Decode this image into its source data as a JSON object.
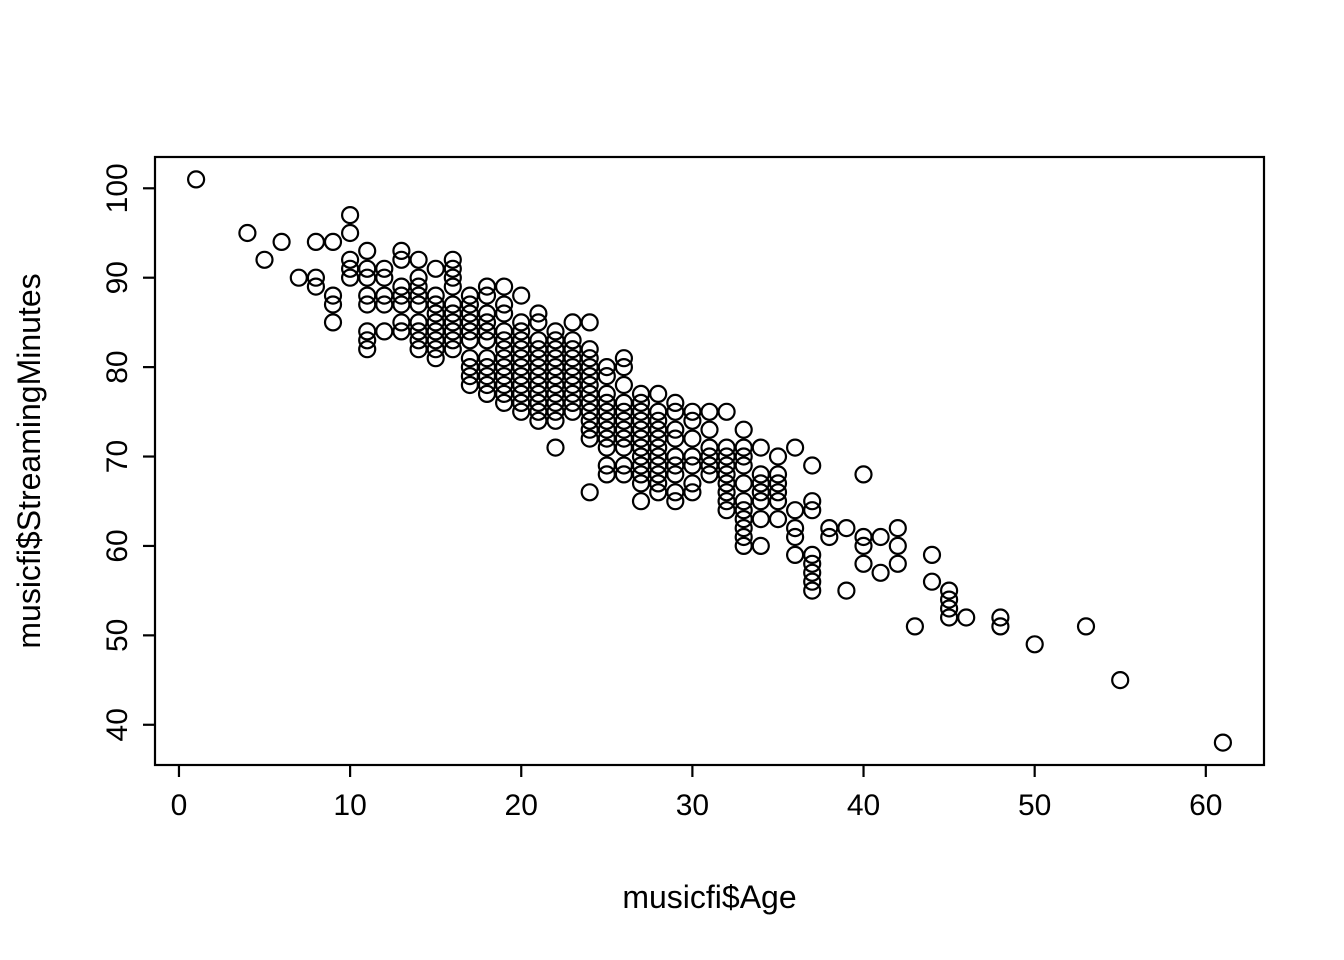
{
  "chart_data": {
    "type": "scatter",
    "title": "",
    "xlabel": "musicfi$Age",
    "ylabel": "musicfi$StreamingMinutes",
    "x_ticks": [
      0,
      10,
      20,
      30,
      40,
      50,
      60
    ],
    "y_ticks": [
      40,
      50,
      60,
      70,
      80,
      90,
      100
    ],
    "xlim": [
      -1.4,
      63.4
    ],
    "ylim": [
      35.5,
      103.5
    ],
    "grid": false,
    "legend": null,
    "marker": "open-circle",
    "marker_color": "#000000",
    "background_color": "#ffffff",
    "points": [
      [
        1,
        101
      ],
      [
        4,
        95
      ],
      [
        5,
        92
      ],
      [
        6,
        94
      ],
      [
        7,
        90
      ],
      [
        8,
        94
      ],
      [
        8,
        90
      ],
      [
        8,
        89
      ],
      [
        9,
        94
      ],
      [
        9,
        88
      ],
      [
        9,
        87
      ],
      [
        9,
        85
      ],
      [
        10,
        97
      ],
      [
        10,
        95
      ],
      [
        10,
        92
      ],
      [
        10,
        91
      ],
      [
        10,
        90
      ],
      [
        11,
        93
      ],
      [
        11,
        91
      ],
      [
        11,
        90
      ],
      [
        11,
        88
      ],
      [
        11,
        87
      ],
      [
        11,
        84
      ],
      [
        11,
        83
      ],
      [
        11,
        82
      ],
      [
        12,
        91
      ],
      [
        12,
        90
      ],
      [
        12,
        88
      ],
      [
        12,
        87
      ],
      [
        12,
        84
      ],
      [
        13,
        93
      ],
      [
        13,
        92
      ],
      [
        13,
        89
      ],
      [
        13,
        88
      ],
      [
        13,
        87
      ],
      [
        13,
        85
      ],
      [
        13,
        84
      ],
      [
        14,
        92
      ],
      [
        14,
        90
      ],
      [
        14,
        89
      ],
      [
        14,
        88
      ],
      [
        14,
        87
      ],
      [
        14,
        85
      ],
      [
        14,
        84
      ],
      [
        14,
        83
      ],
      [
        14,
        82
      ],
      [
        15,
        91
      ],
      [
        15,
        88
      ],
      [
        15,
        87
      ],
      [
        15,
        86
      ],
      [
        15,
        85
      ],
      [
        15,
        84
      ],
      [
        15,
        83
      ],
      [
        15,
        82
      ],
      [
        15,
        81
      ],
      [
        16,
        92
      ],
      [
        16,
        91
      ],
      [
        16,
        90
      ],
      [
        16,
        89
      ],
      [
        16,
        87
      ],
      [
        16,
        86
      ],
      [
        16,
        85
      ],
      [
        16,
        84
      ],
      [
        16,
        83
      ],
      [
        16,
        82
      ],
      [
        17,
        88
      ],
      [
        17,
        87
      ],
      [
        17,
        86
      ],
      [
        17,
        85
      ],
      [
        17,
        84
      ],
      [
        17,
        83
      ],
      [
        17,
        81
      ],
      [
        17,
        80
      ],
      [
        17,
        79
      ],
      [
        17,
        78
      ],
      [
        18,
        89
      ],
      [
        18,
        88
      ],
      [
        18,
        86
      ],
      [
        18,
        85
      ],
      [
        18,
        84
      ],
      [
        18,
        83
      ],
      [
        18,
        81
      ],
      [
        18,
        80
      ],
      [
        18,
        79
      ],
      [
        18,
        78
      ],
      [
        18,
        77
      ],
      [
        19,
        89
      ],
      [
        19,
        87
      ],
      [
        19,
        86
      ],
      [
        19,
        84
      ],
      [
        19,
        83
      ],
      [
        19,
        82
      ],
      [
        19,
        81
      ],
      [
        19,
        80
      ],
      [
        19,
        79
      ],
      [
        19,
        78
      ],
      [
        19,
        77
      ],
      [
        19,
        76
      ],
      [
        20,
        88
      ],
      [
        20,
        85
      ],
      [
        20,
        84
      ],
      [
        20,
        83
      ],
      [
        20,
        82
      ],
      [
        20,
        81
      ],
      [
        20,
        80
      ],
      [
        20,
        79
      ],
      [
        20,
        78
      ],
      [
        20,
        77
      ],
      [
        20,
        76
      ],
      [
        20,
        75
      ],
      [
        21,
        86
      ],
      [
        21,
        85
      ],
      [
        21,
        83
      ],
      [
        21,
        82
      ],
      [
        21,
        81
      ],
      [
        21,
        80
      ],
      [
        21,
        79
      ],
      [
        21,
        78
      ],
      [
        21,
        77
      ],
      [
        21,
        76
      ],
      [
        21,
        75
      ],
      [
        21,
        74
      ],
      [
        22,
        84
      ],
      [
        22,
        83
      ],
      [
        22,
        82
      ],
      [
        22,
        81
      ],
      [
        22,
        80
      ],
      [
        22,
        79
      ],
      [
        22,
        78
      ],
      [
        22,
        77
      ],
      [
        22,
        76
      ],
      [
        22,
        75
      ],
      [
        22,
        74
      ],
      [
        22,
        71
      ],
      [
        23,
        85
      ],
      [
        23,
        83
      ],
      [
        23,
        82
      ],
      [
        23,
        81
      ],
      [
        23,
        80
      ],
      [
        23,
        79
      ],
      [
        23,
        78
      ],
      [
        23,
        77
      ],
      [
        23,
        76
      ],
      [
        23,
        75
      ],
      [
        24,
        85
      ],
      [
        24,
        82
      ],
      [
        24,
        81
      ],
      [
        24,
        80
      ],
      [
        24,
        79
      ],
      [
        24,
        78
      ],
      [
        24,
        77
      ],
      [
        24,
        76
      ],
      [
        24,
        75
      ],
      [
        24,
        74
      ],
      [
        24,
        73
      ],
      [
        24,
        72
      ],
      [
        24,
        66
      ],
      [
        25,
        80
      ],
      [
        25,
        79
      ],
      [
        25,
        77
      ],
      [
        25,
        76
      ],
      [
        25,
        75
      ],
      [
        25,
        74
      ],
      [
        25,
        73
      ],
      [
        25,
        72
      ],
      [
        25,
        71
      ],
      [
        25,
        69
      ],
      [
        25,
        68
      ],
      [
        26,
        81
      ],
      [
        26,
        80
      ],
      [
        26,
        78
      ],
      [
        26,
        76
      ],
      [
        26,
        75
      ],
      [
        26,
        74
      ],
      [
        26,
        73
      ],
      [
        26,
        72
      ],
      [
        26,
        71
      ],
      [
        26,
        69
      ],
      [
        26,
        68
      ],
      [
        27,
        77
      ],
      [
        27,
        76
      ],
      [
        27,
        75
      ],
      [
        27,
        74
      ],
      [
        27,
        73
      ],
      [
        27,
        72
      ],
      [
        27,
        71
      ],
      [
        27,
        70
      ],
      [
        27,
        69
      ],
      [
        27,
        68
      ],
      [
        27,
        67
      ],
      [
        27,
        65
      ],
      [
        28,
        77
      ],
      [
        28,
        75
      ],
      [
        28,
        74
      ],
      [
        28,
        73
      ],
      [
        28,
        72
      ],
      [
        28,
        71
      ],
      [
        28,
        70
      ],
      [
        28,
        69
      ],
      [
        28,
        68
      ],
      [
        28,
        67
      ],
      [
        28,
        66
      ],
      [
        29,
        76
      ],
      [
        29,
        75
      ],
      [
        29,
        73
      ],
      [
        29,
        72
      ],
      [
        29,
        70
      ],
      [
        29,
        69
      ],
      [
        29,
        68
      ],
      [
        29,
        66
      ],
      [
        29,
        65
      ],
      [
        30,
        75
      ],
      [
        30,
        74
      ],
      [
        30,
        72
      ],
      [
        30,
        70
      ],
      [
        30,
        69
      ],
      [
        30,
        67
      ],
      [
        30,
        66
      ],
      [
        31,
        75
      ],
      [
        31,
        73
      ],
      [
        31,
        71
      ],
      [
        31,
        70
      ],
      [
        31,
        69
      ],
      [
        31,
        68
      ],
      [
        32,
        75
      ],
      [
        32,
        71
      ],
      [
        32,
        70
      ],
      [
        32,
        69
      ],
      [
        32,
        68
      ],
      [
        32,
        67
      ],
      [
        32,
        66
      ],
      [
        32,
        65
      ],
      [
        32,
        64
      ],
      [
        33,
        73
      ],
      [
        33,
        71
      ],
      [
        33,
        70
      ],
      [
        33,
        69
      ],
      [
        33,
        67
      ],
      [
        33,
        65
      ],
      [
        33,
        64
      ],
      [
        33,
        63
      ],
      [
        33,
        62
      ],
      [
        33,
        61
      ],
      [
        33,
        60
      ],
      [
        34,
        71
      ],
      [
        34,
        68
      ],
      [
        34,
        67
      ],
      [
        34,
        66
      ],
      [
        34,
        65
      ],
      [
        34,
        63
      ],
      [
        34,
        60
      ],
      [
        35,
        70
      ],
      [
        35,
        68
      ],
      [
        35,
        67
      ],
      [
        35,
        66
      ],
      [
        35,
        65
      ],
      [
        35,
        63
      ],
      [
        36,
        71
      ],
      [
        36,
        64
      ],
      [
        36,
        62
      ],
      [
        36,
        61
      ],
      [
        36,
        59
      ],
      [
        37,
        69
      ],
      [
        37,
        65
      ],
      [
        37,
        64
      ],
      [
        37,
        59
      ],
      [
        37,
        58
      ],
      [
        37,
        57
      ],
      [
        37,
        56
      ],
      [
        37,
        55
      ],
      [
        38,
        62
      ],
      [
        38,
        61
      ],
      [
        39,
        62
      ],
      [
        39,
        55
      ],
      [
        40,
        68
      ],
      [
        40,
        61
      ],
      [
        40,
        60
      ],
      [
        40,
        58
      ],
      [
        41,
        61
      ],
      [
        41,
        57
      ],
      [
        42,
        62
      ],
      [
        42,
        60
      ],
      [
        42,
        58
      ],
      [
        43,
        51
      ],
      [
        44,
        59
      ],
      [
        44,
        56
      ],
      [
        45,
        55
      ],
      [
        45,
        54
      ],
      [
        45,
        53
      ],
      [
        45,
        52
      ],
      [
        46,
        52
      ],
      [
        48,
        52
      ],
      [
        48,
        51
      ],
      [
        50,
        49
      ],
      [
        53,
        51
      ],
      [
        55,
        45
      ],
      [
        61,
        38
      ]
    ]
  },
  "layout_text": {
    "note": ""
  }
}
